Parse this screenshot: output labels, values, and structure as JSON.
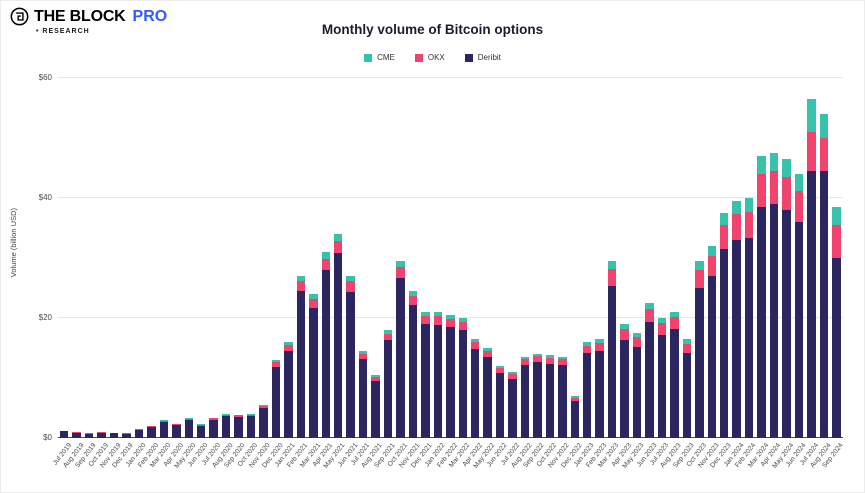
{
  "header": {
    "brand": "THE BLOCK",
    "brand_pro": "PRO",
    "bullet_research": "• RESEARCH",
    "title": "Monthly volume of Bitcoin options"
  },
  "legend": [
    {
      "label": "CME",
      "color": "#38c2ac"
    },
    {
      "label": "OKX",
      "color": "#f0436e"
    },
    {
      "label": "Deribit",
      "color": "#2b2560"
    }
  ],
  "chart_data": {
    "type": "bar",
    "stacked": true,
    "title": "Monthly volume of Bitcoin options",
    "xlabel": "",
    "ylabel": "Volume (billion USD)",
    "ylim": [
      0,
      60
    ],
    "grid": true,
    "legend_position": "top",
    "y_ticks": [
      {
        "value": 0,
        "label": "$0"
      },
      {
        "value": 20,
        "label": "$20"
      },
      {
        "value": 40,
        "label": "$40"
      },
      {
        "value": 60,
        "label": "$60"
      }
    ],
    "categories": [
      "Jul 2019",
      "Aug 2019",
      "Sep 2019",
      "Oct 2019",
      "Nov 2019",
      "Dec 2019",
      "Jan 2020",
      "Feb 2020",
      "Mar 2020",
      "Apr 2020",
      "May 2020",
      "Jun 2020",
      "Jul 2020",
      "Aug 2020",
      "Sep 2020",
      "Oct 2020",
      "Nov 2020",
      "Dec 2020",
      "Jan 2021",
      "Feb 2021",
      "Mar 2021",
      "Apr 2021",
      "May 2021",
      "Jun 2021",
      "Jul 2021",
      "Aug 2021",
      "Sep 2021",
      "Oct 2021",
      "Nov 2021",
      "Dec 2021",
      "Jan 2022",
      "Feb 2022",
      "Mar 2022",
      "Apr 2022",
      "May 2022",
      "Jun 2022",
      "Jul 2022",
      "Aug 2022",
      "Sep 2022",
      "Oct 2022",
      "Nov 2022",
      "Dec 2022",
      "Jan 2023",
      "Feb 2023",
      "Mar 2023",
      "Apr 2023",
      "May 2023",
      "Jun 2023",
      "Jul 2023",
      "Aug 2023",
      "Sep 2023",
      "Oct 2023",
      "Nov 2023",
      "Dec 2023",
      "Jan 2024",
      "Feb 2024",
      "Mar 2024",
      "Apr 2024",
      "May 2024",
      "Jun 2024",
      "Jul 2024",
      "Aug 2024",
      "Sep 2024"
    ],
    "series": [
      {
        "name": "Deribit",
        "color": "#2b2560",
        "values": [
          1.1,
          0.9,
          0.7,
          0.9,
          0.8,
          0.7,
          1.35,
          1.8,
          2.7,
          2.1,
          3.0,
          2.0,
          3.0,
          3.6,
          3.5,
          3.6,
          5.0,
          11.8,
          14.5,
          24.5,
          21.7,
          28.0,
          30.8,
          24.4,
          13.1,
          9.5,
          16.3,
          26.7,
          22.2,
          19.0,
          18.9,
          18.5,
          18.0,
          14.9,
          13.5,
          10.8,
          9.9,
          12.2,
          12.6,
          12.4,
          12.2,
          6.2,
          14.1,
          14.5,
          25.4,
          16.4,
          15.1,
          19.4,
          17.2,
          18.1,
          14.1,
          25.0,
          27.0,
          31.5,
          33.0,
          33.3,
          38.5,
          39.0,
          38.0,
          36.0,
          44.5,
          44.5,
          30.0
        ]
      },
      {
        "name": "OKX",
        "color": "#f0436e",
        "values": [
          0.08,
          0.07,
          0.06,
          0.07,
          0.06,
          0.06,
          0.1,
          0.13,
          0.2,
          0.2,
          0.2,
          0.2,
          0.3,
          0.3,
          0.3,
          0.3,
          0.4,
          0.8,
          1.0,
          1.6,
          1.5,
          1.9,
          2.1,
          1.7,
          0.9,
          0.7,
          1.1,
          1.8,
          1.5,
          1.3,
          1.4,
          1.3,
          1.3,
          1.1,
          1.0,
          0.8,
          0.7,
          0.9,
          1.0,
          1.0,
          0.9,
          0.5,
          1.3,
          1.4,
          2.8,
          1.8,
          1.7,
          2.1,
          1.9,
          2.0,
          1.6,
          3.0,
          3.3,
          4.0,
          4.3,
          4.4,
          5.5,
          5.5,
          5.5,
          5.2,
          6.5,
          5.5,
          5.5
        ]
      },
      {
        "name": "CME",
        "color": "#38c2ac",
        "values": [
          0.02,
          0.03,
          0.04,
          0.03,
          0.04,
          0.04,
          0.05,
          0.07,
          0.1,
          0.1,
          0.1,
          0.1,
          0.1,
          0.1,
          0.1,
          0.1,
          0.1,
          0.4,
          0.5,
          0.9,
          0.8,
          1.1,
          1.1,
          0.9,
          0.5,
          0.3,
          0.6,
          1.0,
          0.8,
          0.7,
          0.7,
          0.7,
          0.7,
          0.5,
          0.5,
          0.4,
          0.4,
          0.4,
          0.4,
          0.4,
          0.4,
          0.3,
          0.6,
          0.6,
          1.3,
          0.8,
          0.7,
          1.0,
          0.9,
          0.9,
          0.8,
          1.5,
          1.7,
          2.0,
          2.2,
          2.3,
          3.0,
          3.0,
          3.0,
          2.8,
          5.5,
          4.0,
          3.0
        ]
      }
    ]
  }
}
